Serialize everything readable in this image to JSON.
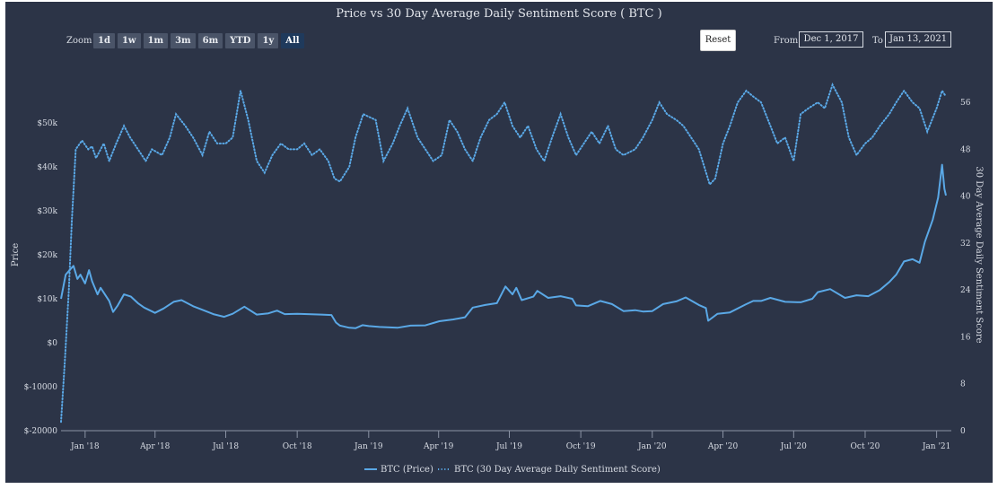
{
  "header": {
    "zoom_label": "Zoom",
    "zoom_buttons": [
      "1d",
      "1w",
      "1m",
      "3m",
      "6m",
      "YTD",
      "1y",
      "All"
    ],
    "active_zoom": "All",
    "reset_label": "Reset",
    "from_label": "From",
    "from_value": "Dec 1, 2017",
    "to_label": "To",
    "to_value": "Jan 13, 2021"
  },
  "colors": {
    "background": "#2c3447",
    "series": "#5aa8e6",
    "text": "#d7dbe3"
  },
  "chart_data": {
    "type": "line",
    "title": "Price vs 30 Day Average Daily Sentiment Score ( BTC )",
    "x_range": [
      "2017-12-01",
      "2021-01-13"
    ],
    "x_ticks": [
      {
        "date": "2018-01-01",
        "label": "Jan '18"
      },
      {
        "date": "2018-04-01",
        "label": "Apr '18"
      },
      {
        "date": "2018-07-01",
        "label": "Jul '18"
      },
      {
        "date": "2018-10-01",
        "label": "Oct '18"
      },
      {
        "date": "2019-01-01",
        "label": "Jan '19"
      },
      {
        "date": "2019-04-01",
        "label": "Apr '19"
      },
      {
        "date": "2019-07-01",
        "label": "Jul '19"
      },
      {
        "date": "2019-10-01",
        "label": "Oct '19"
      },
      {
        "date": "2020-01-01",
        "label": "Jan '20"
      },
      {
        "date": "2020-04-01",
        "label": "Apr '20"
      },
      {
        "date": "2020-07-01",
        "label": "Jul '20"
      },
      {
        "date": "2020-10-01",
        "label": "Oct '20"
      },
      {
        "date": "2021-01-01",
        "label": "Jan '21"
      }
    ],
    "y_left": {
      "label": "Price",
      "range": [
        -20000,
        60000
      ],
      "ticks": [
        -20000,
        -10000,
        0,
        10000,
        20000,
        30000,
        40000,
        50000
      ],
      "tick_labels": [
        "$-20000",
        "$-10000",
        "$0",
        "$10k",
        "$20k",
        "$30k",
        "$40k",
        "$50k"
      ]
    },
    "y_right": {
      "label": "30 Day Average Daily Sentiment Score",
      "range": [
        0,
        60
      ],
      "ticks": [
        0,
        8,
        16,
        24,
        32,
        40,
        48,
        56
      ],
      "tick_labels": [
        "0",
        "8",
        "16",
        "24",
        "32",
        "40",
        "48",
        "56"
      ]
    },
    "series": [
      {
        "name": "BTC (Price)",
        "axis": "left",
        "style": "solid",
        "points": [
          [
            "2017-12-01",
            10000
          ],
          [
            "2017-12-07",
            15500
          ],
          [
            "2017-12-12",
            16500
          ],
          [
            "2017-12-17",
            17500
          ],
          [
            "2017-12-22",
            14500
          ],
          [
            "2017-12-26",
            15500
          ],
          [
            "2018-01-01",
            13500
          ],
          [
            "2018-01-06",
            16500
          ],
          [
            "2018-01-10",
            14000
          ],
          [
            "2018-01-17",
            11000
          ],
          [
            "2018-01-21",
            12500
          ],
          [
            "2018-02-01",
            9500
          ],
          [
            "2018-02-06",
            7000
          ],
          [
            "2018-02-12",
            8500
          ],
          [
            "2018-02-20",
            11000
          ],
          [
            "2018-03-01",
            10500
          ],
          [
            "2018-03-10",
            9000
          ],
          [
            "2018-03-18",
            8000
          ],
          [
            "2018-04-01",
            6800
          ],
          [
            "2018-04-12",
            7800
          ],
          [
            "2018-04-25",
            9300
          ],
          [
            "2018-05-05",
            9700
          ],
          [
            "2018-05-20",
            8300
          ],
          [
            "2018-06-01",
            7500
          ],
          [
            "2018-06-15",
            6500
          ],
          [
            "2018-06-29",
            5900
          ],
          [
            "2018-07-10",
            6600
          ],
          [
            "2018-07-25",
            8200
          ],
          [
            "2018-08-10",
            6400
          ],
          [
            "2018-08-25",
            6700
          ],
          [
            "2018-09-05",
            7300
          ],
          [
            "2018-09-15",
            6500
          ],
          [
            "2018-10-01",
            6600
          ],
          [
            "2018-10-15",
            6500
          ],
          [
            "2018-11-01",
            6400
          ],
          [
            "2018-11-14",
            6300
          ],
          [
            "2018-11-20",
            4600
          ],
          [
            "2018-11-25",
            3900
          ],
          [
            "2018-12-07",
            3400
          ],
          [
            "2018-12-15",
            3300
          ],
          [
            "2018-12-24",
            4000
          ],
          [
            "2019-01-01",
            3800
          ],
          [
            "2019-01-15",
            3600
          ],
          [
            "2019-02-07",
            3400
          ],
          [
            "2019-02-24",
            3900
          ],
          [
            "2019-03-15",
            3950
          ],
          [
            "2019-04-02",
            4900
          ],
          [
            "2019-04-20",
            5300
          ],
          [
            "2019-05-05",
            5800
          ],
          [
            "2019-05-15",
            8000
          ],
          [
            "2019-05-31",
            8600
          ],
          [
            "2019-06-15",
            9000
          ],
          [
            "2019-06-26",
            12800
          ],
          [
            "2019-07-05",
            11000
          ],
          [
            "2019-07-10",
            12500
          ],
          [
            "2019-07-17",
            9700
          ],
          [
            "2019-08-01",
            10500
          ],
          [
            "2019-08-06",
            11800
          ],
          [
            "2019-08-20",
            10200
          ],
          [
            "2019-09-05",
            10600
          ],
          [
            "2019-09-20",
            10000
          ],
          [
            "2019-09-25",
            8500
          ],
          [
            "2019-10-10",
            8300
          ],
          [
            "2019-10-26",
            9500
          ],
          [
            "2019-11-10",
            8800
          ],
          [
            "2019-11-25",
            7200
          ],
          [
            "2019-12-10",
            7400
          ],
          [
            "2019-12-20",
            7100
          ],
          [
            "2020-01-01",
            7200
          ],
          [
            "2020-01-15",
            8800
          ],
          [
            "2020-02-01",
            9400
          ],
          [
            "2020-02-13",
            10300
          ],
          [
            "2020-03-01",
            8600
          ],
          [
            "2020-03-10",
            7900
          ],
          [
            "2020-03-13",
            5000
          ],
          [
            "2020-03-25",
            6600
          ],
          [
            "2020-04-10",
            6900
          ],
          [
            "2020-04-30",
            8700
          ],
          [
            "2020-05-10",
            9500
          ],
          [
            "2020-05-20",
            9500
          ],
          [
            "2020-06-01",
            10200
          ],
          [
            "2020-06-20",
            9300
          ],
          [
            "2020-07-10",
            9200
          ],
          [
            "2020-07-25",
            10000
          ],
          [
            "2020-08-01",
            11500
          ],
          [
            "2020-08-17",
            12200
          ],
          [
            "2020-09-05",
            10200
          ],
          [
            "2020-09-20",
            10800
          ],
          [
            "2020-10-05",
            10600
          ],
          [
            "2020-10-20",
            12000
          ],
          [
            "2020-11-01",
            13800
          ],
          [
            "2020-11-10",
            15500
          ],
          [
            "2020-11-20",
            18500
          ],
          [
            "2020-12-01",
            19000
          ],
          [
            "2020-12-10",
            18200
          ],
          [
            "2020-12-17",
            23000
          ],
          [
            "2020-12-27",
            28000
          ],
          [
            "2021-01-03",
            33000
          ],
          [
            "2021-01-08",
            40500
          ],
          [
            "2021-01-11",
            35000
          ],
          [
            "2021-01-13",
            33500
          ]
        ]
      },
      {
        "name": "BTC (30 Day Average Daily Sentiment Score)",
        "axis": "right",
        "style": "dotted",
        "points": [
          [
            "2017-12-01",
            1.5
          ],
          [
            "2017-12-06",
            12
          ],
          [
            "2017-12-11",
            24
          ],
          [
            "2017-12-15",
            36
          ],
          [
            "2017-12-20",
            48
          ],
          [
            "2017-12-28",
            49.5
          ],
          [
            "2018-01-05",
            48
          ],
          [
            "2018-01-10",
            48.5
          ],
          [
            "2018-01-15",
            46.5
          ],
          [
            "2018-01-25",
            49
          ],
          [
            "2018-02-01",
            46
          ],
          [
            "2018-02-10",
            49
          ],
          [
            "2018-02-20",
            52
          ],
          [
            "2018-02-28",
            50
          ],
          [
            "2018-03-10",
            48
          ],
          [
            "2018-03-20",
            46
          ],
          [
            "2018-03-28",
            48
          ],
          [
            "2018-04-10",
            47
          ],
          [
            "2018-04-20",
            50
          ],
          [
            "2018-04-28",
            54
          ],
          [
            "2018-05-10",
            52
          ],
          [
            "2018-05-20",
            50
          ],
          [
            "2018-06-01",
            47
          ],
          [
            "2018-06-10",
            51
          ],
          [
            "2018-06-20",
            49
          ],
          [
            "2018-07-01",
            49
          ],
          [
            "2018-07-10",
            50
          ],
          [
            "2018-07-20",
            58
          ],
          [
            "2018-07-30",
            53
          ],
          [
            "2018-08-10",
            46
          ],
          [
            "2018-08-20",
            44
          ],
          [
            "2018-08-30",
            47
          ],
          [
            "2018-09-10",
            49
          ],
          [
            "2018-09-20",
            48
          ],
          [
            "2018-10-01",
            48
          ],
          [
            "2018-10-10",
            49
          ],
          [
            "2018-10-20",
            47
          ],
          [
            "2018-10-30",
            48
          ],
          [
            "2018-11-10",
            46
          ],
          [
            "2018-11-18",
            43
          ],
          [
            "2018-11-25",
            42.5
          ],
          [
            "2018-12-07",
            45
          ],
          [
            "2018-12-15",
            50
          ],
          [
            "2018-12-25",
            54
          ],
          [
            "2019-01-10",
            53
          ],
          [
            "2019-01-20",
            46
          ],
          [
            "2019-02-01",
            49
          ],
          [
            "2019-02-10",
            52
          ],
          [
            "2019-02-20",
            55
          ],
          [
            "2019-03-05",
            50
          ],
          [
            "2019-03-15",
            48
          ],
          [
            "2019-03-25",
            46
          ],
          [
            "2019-04-05",
            47
          ],
          [
            "2019-04-15",
            53
          ],
          [
            "2019-04-25",
            51
          ],
          [
            "2019-05-05",
            48
          ],
          [
            "2019-05-15",
            46
          ],
          [
            "2019-05-25",
            50
          ],
          [
            "2019-06-05",
            53
          ],
          [
            "2019-06-15",
            54
          ],
          [
            "2019-06-25",
            56
          ],
          [
            "2019-07-05",
            52
          ],
          [
            "2019-07-15",
            50
          ],
          [
            "2019-07-25",
            52
          ],
          [
            "2019-08-05",
            48
          ],
          [
            "2019-08-15",
            46
          ],
          [
            "2019-08-25",
            50
          ],
          [
            "2019-09-05",
            54
          ],
          [
            "2019-09-15",
            50
          ],
          [
            "2019-09-25",
            47
          ],
          [
            "2019-10-05",
            49
          ],
          [
            "2019-10-15",
            51
          ],
          [
            "2019-10-25",
            49
          ],
          [
            "2019-11-05",
            52
          ],
          [
            "2019-11-15",
            48
          ],
          [
            "2019-11-25",
            47
          ],
          [
            "2019-12-10",
            48
          ],
          [
            "2019-12-20",
            50
          ],
          [
            "2020-01-01",
            53
          ],
          [
            "2020-01-10",
            56
          ],
          [
            "2020-01-20",
            54
          ],
          [
            "2020-02-01",
            53
          ],
          [
            "2020-02-10",
            52
          ],
          [
            "2020-02-20",
            50
          ],
          [
            "2020-03-01",
            48
          ],
          [
            "2020-03-15",
            42
          ],
          [
            "2020-03-22",
            43
          ],
          [
            "2020-04-01",
            49
          ],
          [
            "2020-04-10",
            52
          ],
          [
            "2020-04-20",
            56
          ],
          [
            "2020-05-01",
            58
          ],
          [
            "2020-05-10",
            57
          ],
          [
            "2020-05-20",
            56
          ],
          [
            "2020-06-01",
            52
          ],
          [
            "2020-06-10",
            49
          ],
          [
            "2020-06-20",
            50
          ],
          [
            "2020-07-01",
            46
          ],
          [
            "2020-07-10",
            54
          ],
          [
            "2020-07-20",
            55
          ],
          [
            "2020-08-01",
            56
          ],
          [
            "2020-08-10",
            55
          ],
          [
            "2020-08-20",
            59
          ],
          [
            "2020-09-01",
            56
          ],
          [
            "2020-09-10",
            50
          ],
          [
            "2020-09-20",
            47
          ],
          [
            "2020-10-01",
            49
          ],
          [
            "2020-10-10",
            50
          ],
          [
            "2020-10-20",
            52
          ],
          [
            "2020-11-01",
            54
          ],
          [
            "2020-11-10",
            56
          ],
          [
            "2020-11-20",
            58
          ],
          [
            "2020-12-01",
            56
          ],
          [
            "2020-12-10",
            55
          ],
          [
            "2020-12-20",
            51
          ],
          [
            "2021-01-01",
            55
          ],
          [
            "2021-01-08",
            58
          ],
          [
            "2021-01-13",
            57
          ]
        ]
      }
    ],
    "legend": {
      "placement": "bottom-center"
    },
    "grid": false
  }
}
